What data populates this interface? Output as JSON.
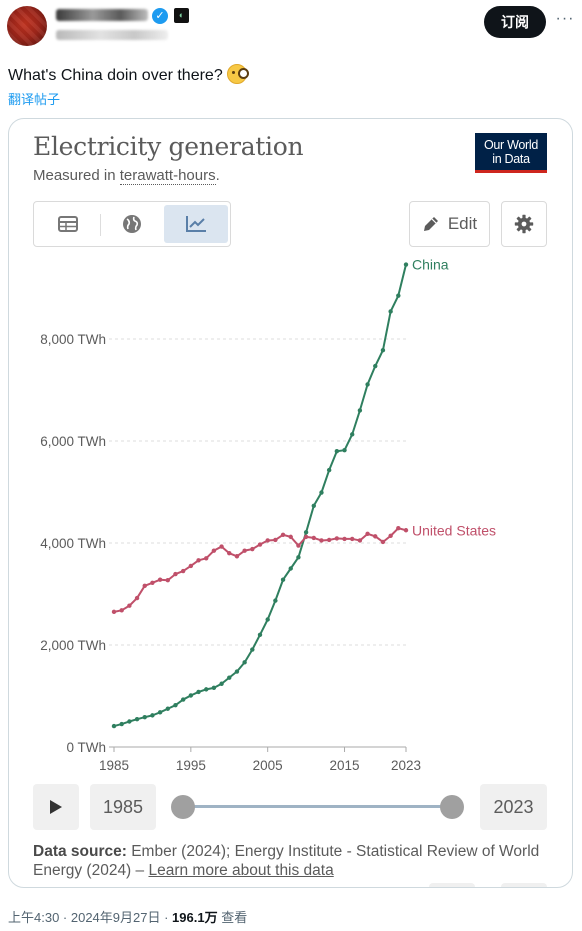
{
  "tweet": {
    "subscribe_label": "订阅",
    "more_label": "···",
    "text": "What's China doin over there?",
    "translate_label": "翻译帖子",
    "timestamp": "上午4:30 · 2024年9月27日 · ",
    "views_count": "196.1万",
    "views_label": " 查看"
  },
  "card": {
    "title": "Electricity generation",
    "subtitle_prefix": "Measured in ",
    "subtitle_unit": "terawatt-hours",
    "subtitle_suffix": ".",
    "logo_line1": "Our World",
    "logo_line2": "in Data",
    "edit_label": "Edit",
    "play_label": "play",
    "timeline": {
      "start_year": "1985",
      "end_year": "2023",
      "start_value": 1985,
      "end_value": 2023
    },
    "source_label": "Data source:",
    "source_text": " Ember (2024); Energy Institute - Statistical Review of World Energy (2024) – ",
    "learn_more": "Learn more about this data"
  },
  "colors": {
    "china": "#2f7f5f",
    "united_states": "#c0506a",
    "grid": "#dddddd",
    "text": "#5b5b5b"
  },
  "chart_data": {
    "type": "line",
    "title": "Electricity generation",
    "subtitle": "Measured in terawatt-hours.",
    "ylim": [
      0,
      9500
    ],
    "xlim": [
      1985,
      2023
    ],
    "y_ticks": [
      {
        "value": 0,
        "label": "0 TWh"
      },
      {
        "value": 2000,
        "label": "2,000 TWh"
      },
      {
        "value": 4000,
        "label": "4,000 TWh"
      },
      {
        "value": 6000,
        "label": "6,000 TWh"
      },
      {
        "value": 8000,
        "label": "8,000 TWh"
      }
    ],
    "x_ticks": [
      {
        "value": 1985,
        "label": "1985"
      },
      {
        "value": 1995,
        "label": "1995"
      },
      {
        "value": 2005,
        "label": "2005"
      },
      {
        "value": 2015,
        "label": "2015"
      },
      {
        "value": 2023,
        "label": "2023"
      }
    ],
    "x": [
      1985,
      1986,
      1987,
      1988,
      1989,
      1990,
      1991,
      1992,
      1993,
      1994,
      1995,
      1996,
      1997,
      1998,
      1999,
      2000,
      2001,
      2002,
      2003,
      2004,
      2005,
      2006,
      2007,
      2008,
      2009,
      2010,
      2011,
      2012,
      2013,
      2014,
      2015,
      2016,
      2017,
      2018,
      2019,
      2020,
      2021,
      2022,
      2023
    ],
    "series": [
      {
        "name": "China",
        "values": [
          410,
          450,
          500,
          545,
          585,
          620,
          680,
          750,
          820,
          930,
          1010,
          1080,
          1130,
          1160,
          1240,
          1360,
          1480,
          1660,
          1910,
          2200,
          2500,
          2870,
          3280,
          3500,
          3720,
          4210,
          4730,
          4990,
          5430,
          5800,
          5820,
          6130,
          6600,
          7110,
          7470,
          7780,
          8540,
          8850,
          9460
        ]
      },
      {
        "name": "United States",
        "values": [
          2650,
          2680,
          2770,
          2920,
          3160,
          3220,
          3280,
          3270,
          3390,
          3450,
          3550,
          3660,
          3700,
          3850,
          3930,
          3800,
          3740,
          3850,
          3880,
          3970,
          4050,
          4060,
          4160,
          4120,
          3950,
          4120,
          4100,
          4050,
          4060,
          4090,
          4080,
          4080,
          4050,
          4180,
          4130,
          4020,
          4140,
          4290,
          4250
        ]
      }
    ],
    "grid": true,
    "legend": "line-end labels"
  }
}
